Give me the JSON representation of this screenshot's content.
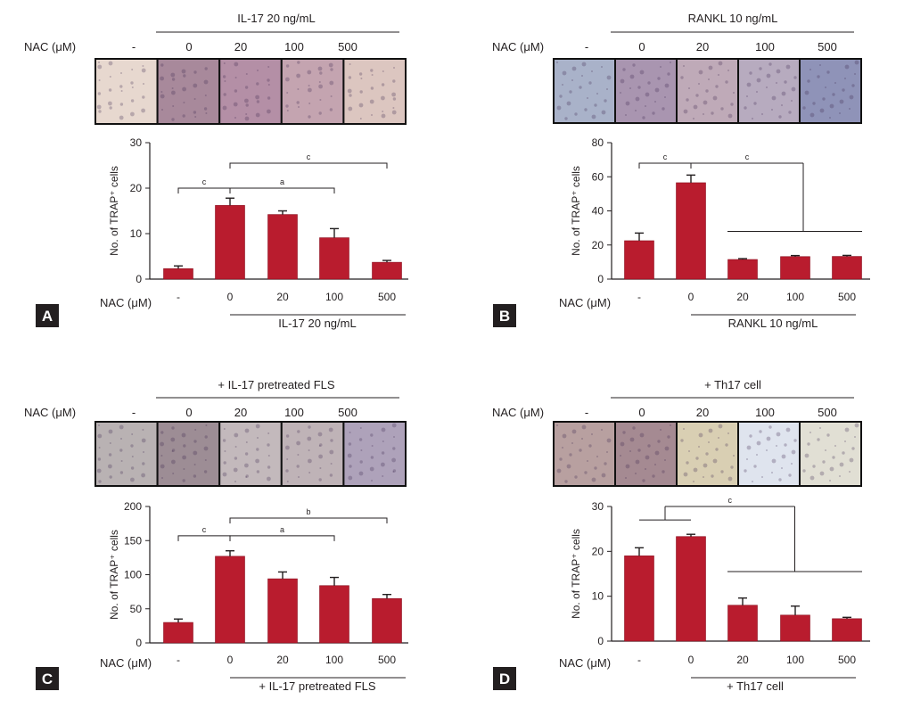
{
  "panels": [
    {
      "letter": "A",
      "nac_label": "NAC (μM)",
      "condition_label": "IL-17  20 ng/mL",
      "photo_colors": [
        "#e7d8cf",
        "#a8899b",
        "#b48fa6",
        "#c4a4b0",
        "#dcc6c0"
      ],
      "ylabel": "No. of TRAP⁺ cells",
      "chart": {
        "type": "bar",
        "categories": [
          "-",
          "0",
          "20",
          "100",
          "500"
        ],
        "values": [
          2.3,
          16.2,
          14.2,
          9.1,
          3.7
        ],
        "errors": [
          0.6,
          1.6,
          0.8,
          2.0,
          0.4
        ],
        "ylim": [
          0,
          30
        ],
        "yticks": [
          0,
          10,
          20,
          30
        ]
      },
      "sig": [
        {
          "label": "c",
          "from": 0,
          "to": [
            1
          ],
          "y": 20
        },
        {
          "label": "a",
          "from": 1,
          "to": [
            3
          ],
          "y": 20
        },
        {
          "label": "c",
          "from": 1,
          "to": [
            4
          ],
          "y": 25.5
        }
      ]
    },
    {
      "letter": "B",
      "nac_label": "NAC (μM)",
      "condition_label": "RANKL  10 ng/mL",
      "photo_colors": [
        "#a9b2c9",
        "#a995b0",
        "#bfaab8",
        "#b7abbf",
        "#8f93b8"
      ],
      "ylabel": "No. of TRAP⁺ cells",
      "chart": {
        "type": "bar",
        "categories": [
          "-",
          "0",
          "20",
          "100",
          "500"
        ],
        "values": [
          22.5,
          56.5,
          11.5,
          13.2,
          13.3
        ],
        "errors": [
          4.5,
          4.5,
          0.5,
          0.6,
          0.6
        ],
        "ylim": [
          0,
          80
        ],
        "yticks": [
          0,
          20,
          40,
          60,
          80
        ]
      },
      "sig": [
        {
          "label": "c",
          "from": 0,
          "to": [
            1
          ],
          "y": 68
        },
        {
          "label": "c",
          "from": 1,
          "to": [
            2,
            3,
            4
          ],
          "y": 68,
          "group_y": 28
        }
      ]
    },
    {
      "letter": "C",
      "nac_label": "NAC (μM)",
      "condition_label": "+ IL-17  pretreated FLS",
      "photo_colors": [
        "#b9b2b3",
        "#9d8d95",
        "#c3b9bc",
        "#bfb3b7",
        "#aea2ba"
      ],
      "ylabel": "No. of TRAP⁺ cells",
      "chart": {
        "type": "bar",
        "categories": [
          "-",
          "0",
          "20",
          "100",
          "500"
        ],
        "values": [
          30,
          127,
          94,
          84,
          65
        ],
        "errors": [
          5,
          8,
          10,
          12,
          6
        ],
        "ylim": [
          0,
          200
        ],
        "yticks": [
          0,
          50,
          100,
          150,
          200
        ]
      },
      "sig": [
        {
          "label": "c",
          "from": 0,
          "to": [
            1
          ],
          "y": 157
        },
        {
          "label": "a",
          "from": 1,
          "to": [
            3
          ],
          "y": 157
        },
        {
          "label": "b",
          "from": 1,
          "to": [
            4
          ],
          "y": 183
        }
      ]
    },
    {
      "letter": "D",
      "nac_label": "NAC (μM)",
      "condition_label": "+ Th17  cell",
      "photo_colors": [
        "#b8a0a0",
        "#a58a92",
        "#d9cfb3",
        "#dfe4ee",
        "#e1dfd4"
      ],
      "ylabel": "No. of TRAP⁺ cells",
      "chart": {
        "type": "bar",
        "categories": [
          "-",
          "0",
          "20",
          "100",
          "500"
        ],
        "values": [
          19,
          23.3,
          8,
          5.8,
          5
        ],
        "errors": [
          1.8,
          0.5,
          1.6,
          2.0,
          0.3
        ],
        "ylim": [
          0,
          30
        ],
        "yticks": [
          0,
          10,
          20,
          30
        ]
      },
      "sig": [
        {
          "label": "c",
          "group": [
            0,
            1
          ],
          "to": [
            2,
            3,
            4
          ],
          "y": 30,
          "from_y": 27,
          "group_y": 15.5
        }
      ]
    }
  ]
}
